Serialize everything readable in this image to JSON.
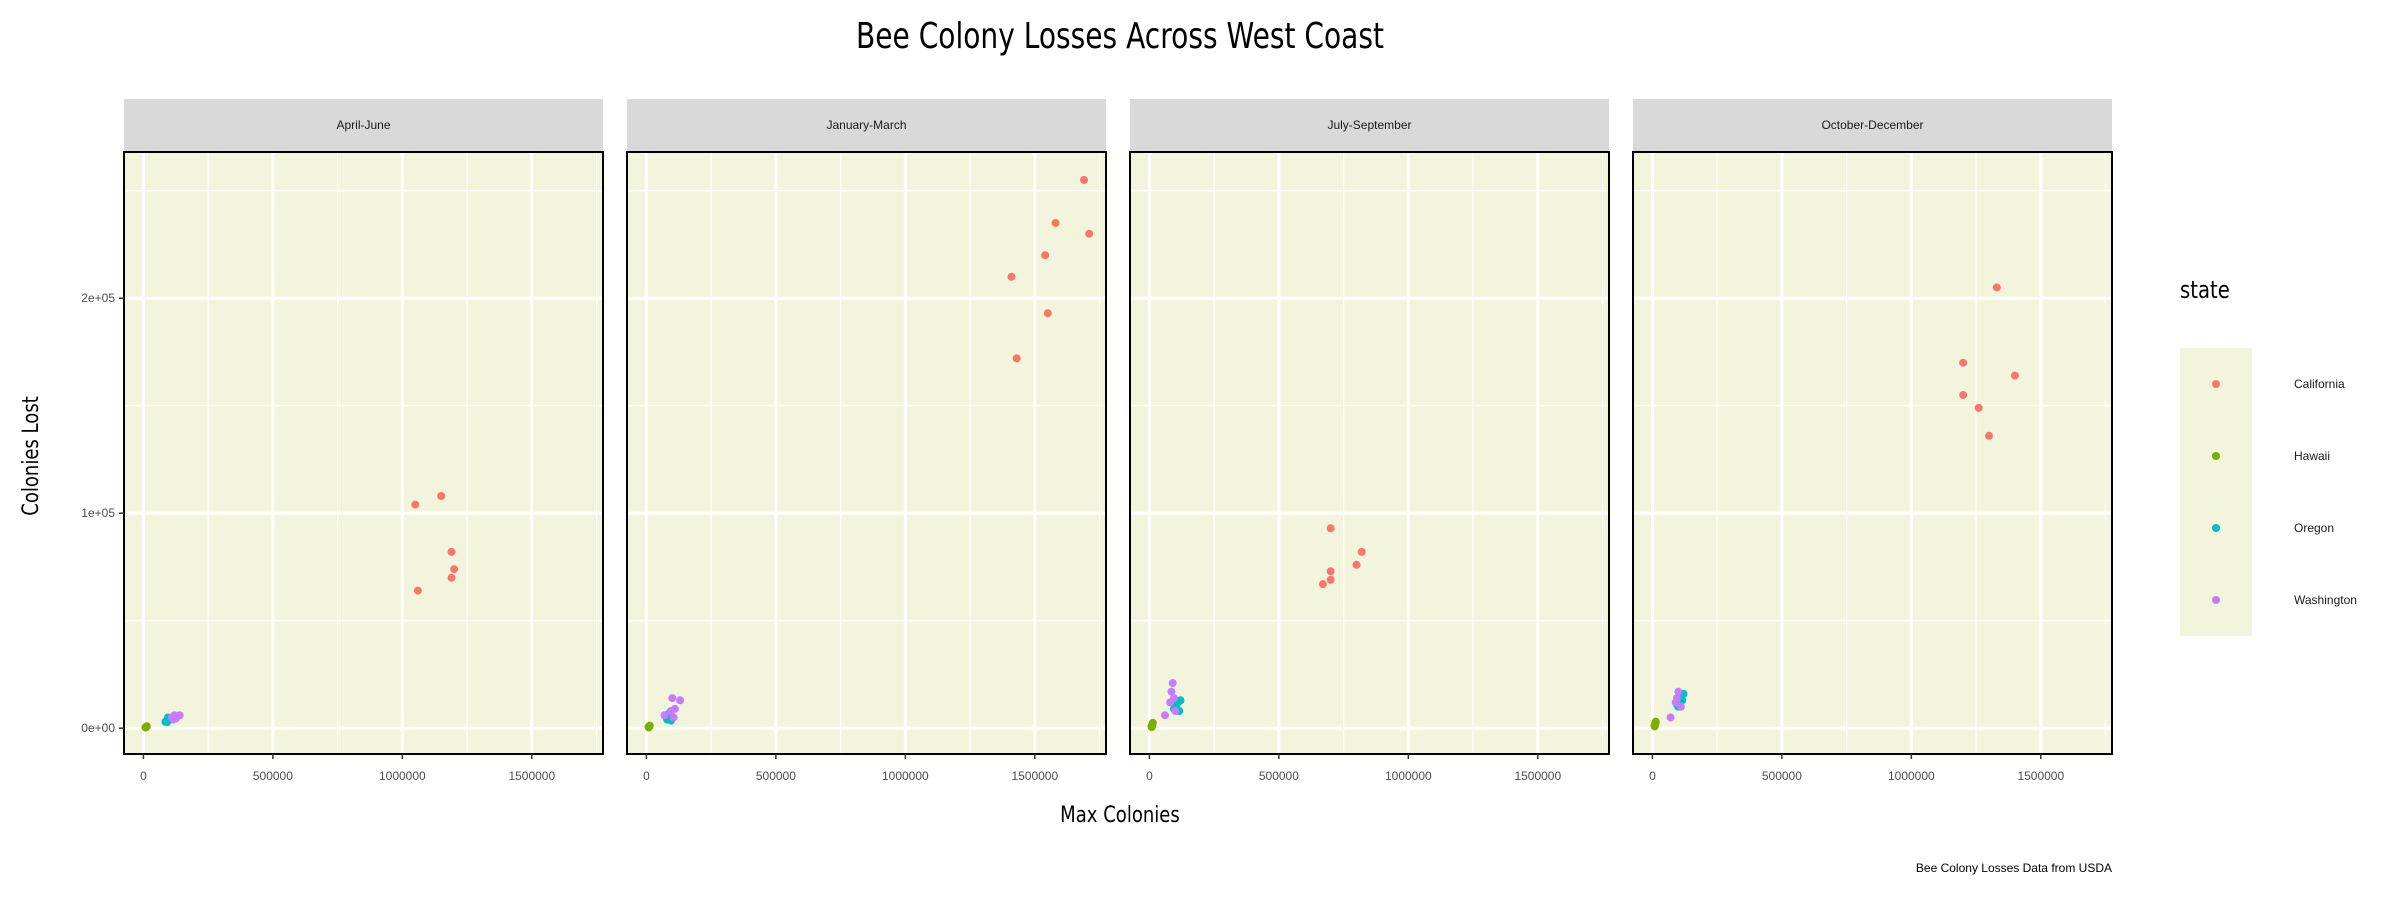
{
  "chart_data": {
    "type": "scatter",
    "title": "Bee Colony Losses Across West Coast",
    "xlabel": "Max Colonies",
    "ylabel": "Colonies Lost",
    "caption": "Bee Colony Losses Data from USDA",
    "xlim": [
      -75000,
      1775000
    ],
    "ylim": [
      -12000,
      268000
    ],
    "x_ticks": [
      0,
      500000,
      1000000,
      1500000
    ],
    "x_tick_labels": [
      "0",
      "500000",
      "1000000",
      "1500000"
    ],
    "y_ticks": [
      0,
      100000,
      200000
    ],
    "y_tick_labels": [
      "0e+00",
      "1e+05",
      "2e+05"
    ],
    "panel_background": "#f3f4dc",
    "strip_background": "#d9d9d9",
    "grid": true,
    "legend": {
      "title": "state",
      "position": "right",
      "entries": [
        {
          "name": "California",
          "color": "#f8766d"
        },
        {
          "name": "Hawaii",
          "color": "#7cae00"
        },
        {
          "name": "Oregon",
          "color": "#00bfc4"
        },
        {
          "name": "Washington",
          "color": "#c77cff"
        }
      ]
    },
    "panels": [
      {
        "label": "April-June",
        "series": [
          {
            "name": "California",
            "points": [
              [
                1050000,
                104000
              ],
              [
                1150000,
                108000
              ],
              [
                1060000,
                64000
              ],
              [
                1190000,
                82000
              ],
              [
                1200000,
                74000
              ],
              [
                1190000,
                70000
              ]
            ]
          },
          {
            "name": "Hawaii",
            "points": [
              [
                10000,
                500
              ],
              [
                12000,
                800
              ],
              [
                9000,
                300
              ],
              [
                11000,
                600
              ],
              [
                13000,
                900
              ],
              [
                8000,
                400
              ]
            ]
          },
          {
            "name": "Oregon",
            "points": [
              [
                85000,
                3000
              ],
              [
                95000,
                5000
              ],
              [
                100000,
                4000
              ],
              [
                90000,
                3500
              ],
              [
                105000,
                4500
              ],
              [
                92000,
                2800
              ]
            ]
          },
          {
            "name": "Washington",
            "points": [
              [
                110000,
                5000
              ],
              [
                120000,
                6000
              ],
              [
                130000,
                5500
              ],
              [
                125000,
                4500
              ],
              [
                140000,
                6000
              ],
              [
                115000,
                4000
              ]
            ]
          }
        ]
      },
      {
        "label": "January-March",
        "series": [
          {
            "name": "California",
            "points": [
              [
                1690000,
                255000
              ],
              [
                1580000,
                235000
              ],
              [
                1710000,
                230000
              ],
              [
                1540000,
                220000
              ],
              [
                1410000,
                210000
              ],
              [
                1550000,
                193000
              ],
              [
                1430000,
                172000
              ]
            ]
          },
          {
            "name": "Hawaii",
            "points": [
              [
                10000,
                500
              ],
              [
                12000,
                1000
              ],
              [
                9000,
                300
              ],
              [
                11000,
                700
              ],
              [
                13000,
                1200
              ],
              [
                8000,
                600
              ]
            ]
          },
          {
            "name": "Oregon",
            "points": [
              [
                80000,
                4000
              ],
              [
                90000,
                6000
              ],
              [
                85000,
                5000
              ],
              [
                95000,
                3500
              ],
              [
                88000,
                7000
              ]
            ]
          },
          {
            "name": "Washington",
            "points": [
              [
                100000,
                14000
              ],
              [
                130000,
                13000
              ],
              [
                70000,
                6000
              ],
              [
                110000,
                9000
              ],
              [
                95000,
                8000
              ],
              [
                105000,
                5000
              ]
            ]
          }
        ]
      },
      {
        "label": "July-September",
        "series": [
          {
            "name": "California",
            "points": [
              [
                700000,
                93000
              ],
              [
                820000,
                82000
              ],
              [
                800000,
                76000
              ],
              [
                700000,
                73000
              ],
              [
                700000,
                69000
              ],
              [
                670000,
                67000
              ]
            ]
          },
          {
            "name": "Hawaii",
            "points": [
              [
                10000,
                1000
              ],
              [
                12000,
                2000
              ],
              [
                9000,
                500
              ],
              [
                11000,
                1500
              ],
              [
                13000,
                2500
              ],
              [
                8000,
                800
              ]
            ]
          },
          {
            "name": "Oregon",
            "points": [
              [
                100000,
                10000
              ],
              [
                110000,
                12000
              ],
              [
                115000,
                8000
              ],
              [
                105000,
                11000
              ],
              [
                120000,
                13000
              ],
              [
                95000,
                9000
              ]
            ]
          },
          {
            "name": "Washington",
            "points": [
              [
                90000,
                21000
              ],
              [
                85000,
                17000
              ],
              [
                80000,
                12000
              ],
              [
                60000,
                6000
              ],
              [
                100000,
                8000
              ],
              [
                95000,
                14000
              ]
            ]
          }
        ]
      },
      {
        "label": "October-December",
        "series": [
          {
            "name": "California",
            "points": [
              [
                1330000,
                205000
              ],
              [
                1200000,
                170000
              ],
              [
                1400000,
                164000
              ],
              [
                1200000,
                155000
              ],
              [
                1260000,
                149000
              ],
              [
                1300000,
                136000
              ]
            ]
          },
          {
            "name": "Hawaii",
            "points": [
              [
                10000,
                1500
              ],
              [
                12000,
                2500
              ],
              [
                9000,
                800
              ],
              [
                11000,
                2000
              ],
              [
                13000,
                3000
              ],
              [
                8000,
                1200
              ]
            ]
          },
          {
            "name": "Oregon",
            "points": [
              [
                100000,
                10000
              ],
              [
                110000,
                15000
              ],
              [
                115000,
                13000
              ],
              [
                105000,
                12000
              ],
              [
                120000,
                16000
              ],
              [
                95000,
                11000
              ]
            ]
          },
          {
            "name": "Washington",
            "points": [
              [
                100000,
                17000
              ],
              [
                90000,
                12000
              ],
              [
                70000,
                5000
              ],
              [
                110000,
                10000
              ],
              [
                95000,
                14000
              ]
            ]
          }
        ]
      }
    ]
  }
}
